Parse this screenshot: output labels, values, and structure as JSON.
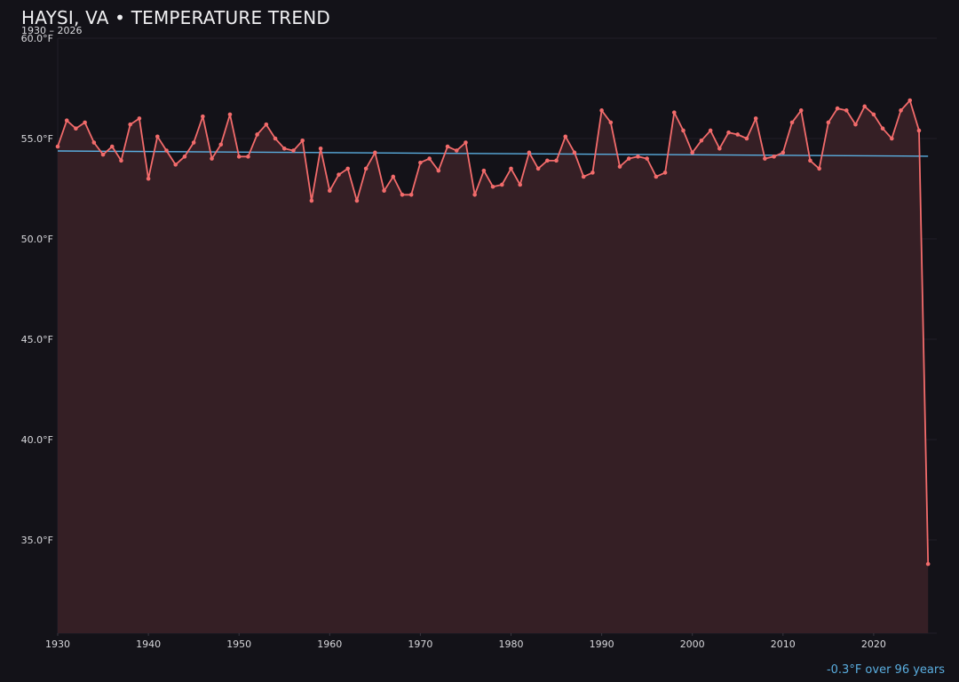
{
  "header": {
    "title": "HAYSI, VA • TEMPERATURE TREND",
    "subtitle": "1930 – 2026"
  },
  "footer": {
    "trend_note": "-0.3°F over 96 years"
  },
  "colors": {
    "background": "#131218",
    "line": "#f26b6b",
    "fill": "#351f25",
    "trend": "#5aaee0",
    "grid": "#221f27",
    "text": "#d8d8dc"
  },
  "chart_data": {
    "type": "line",
    "title": "HAYSI, VA • TEMPERATURE TREND",
    "subtitle": "1930 – 2026",
    "xlabel": "",
    "ylabel": "",
    "x": [
      1930,
      1931,
      1932,
      1933,
      1934,
      1935,
      1936,
      1937,
      1938,
      1939,
      1940,
      1941,
      1942,
      1943,
      1944,
      1945,
      1946,
      1947,
      1948,
      1949,
      1950,
      1951,
      1952,
      1953,
      1954,
      1955,
      1956,
      1957,
      1958,
      1959,
      1960,
      1961,
      1962,
      1963,
      1964,
      1965,
      1966,
      1967,
      1968,
      1969,
      1970,
      1971,
      1972,
      1973,
      1974,
      1975,
      1976,
      1977,
      1978,
      1979,
      1980,
      1981,
      1982,
      1983,
      1984,
      1985,
      1986,
      1987,
      1988,
      1989,
      1990,
      1991,
      1992,
      1993,
      1994,
      1995,
      1996,
      1997,
      1998,
      1999,
      2000,
      2001,
      2002,
      2003,
      2004,
      2005,
      2006,
      2007,
      2008,
      2009,
      2010,
      2011,
      2012,
      2013,
      2014,
      2015,
      2016,
      2017,
      2018,
      2019,
      2020,
      2021,
      2022,
      2023,
      2024,
      2025,
      2026
    ],
    "series": [
      {
        "name": "Annual mean temperature (°F)",
        "values": [
          54.6,
          55.9,
          55.5,
          55.8,
          54.8,
          54.2,
          54.6,
          53.9,
          55.7,
          56.0,
          53.0,
          55.1,
          54.4,
          53.7,
          54.1,
          54.8,
          56.1,
          54.0,
          54.7,
          56.2,
          54.1,
          54.1,
          55.2,
          55.7,
          55.0,
          54.5,
          54.4,
          54.9,
          51.9,
          54.5,
          52.4,
          53.2,
          53.5,
          51.9,
          53.5,
          54.3,
          52.4,
          53.1,
          52.2,
          52.2,
          53.8,
          54.0,
          53.4,
          54.6,
          54.4,
          54.8,
          52.2,
          53.4,
          52.6,
          52.7,
          53.5,
          52.7,
          54.3,
          53.5,
          53.9,
          53.9,
          55.1,
          54.3,
          53.1,
          53.3,
          56.4,
          55.8,
          53.6,
          54.0,
          54.1,
          54.0,
          53.1,
          53.3,
          56.3,
          55.4,
          54.3,
          54.9,
          55.4,
          54.5,
          55.3,
          55.2,
          55.0,
          56.0,
          54.0,
          54.1,
          54.3,
          55.8,
          56.4,
          53.9,
          53.5,
          55.8,
          56.5,
          56.4,
          55.7,
          56.6,
          56.2,
          55.5,
          55.0,
          56.4,
          56.9,
          55.4,
          33.8
        ]
      },
      {
        "name": "Linear trend",
        "x": [
          1930,
          2026
        ],
        "values": [
          54.38,
          54.12
        ]
      }
    ],
    "yticks": [
      "35.0°F",
      "40.0°F",
      "45.0°F",
      "50.0°F",
      "55.0°F",
      "60.0°F"
    ],
    "ytick_values": [
      35,
      40,
      45,
      50,
      55,
      60
    ],
    "xticks": [
      "1930",
      "1940",
      "1950",
      "1960",
      "1970",
      "1980",
      "1990",
      "2000",
      "2010",
      "2020"
    ],
    "xtick_values": [
      1930,
      1940,
      1950,
      1960,
      1970,
      1980,
      1990,
      2000,
      2010,
      2020
    ],
    "xlim": [
      1930,
      2027
    ],
    "ylim": [
      30.4,
      60
    ],
    "grid": true,
    "legend": "none",
    "annotations": [
      "-0.3°F over 96 years"
    ]
  }
}
